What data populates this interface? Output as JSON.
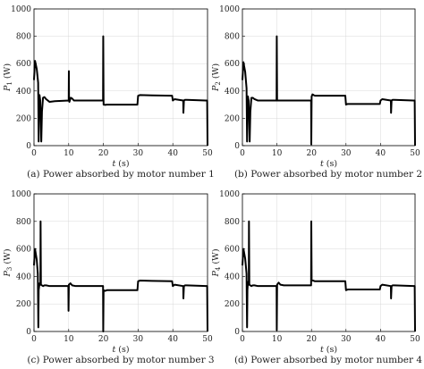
{
  "chart_data": [
    {
      "type": "line",
      "caption": "(a) Power absorbed by motor number 1",
      "ylabel_main": "P",
      "ylabel_sub": "1",
      "ylabel_unit": "(W)",
      "xlabel_main": "t",
      "xlabel_unit": "(s)",
      "xlim": [
        0,
        50
      ],
      "ylim": [
        0,
        1000
      ],
      "xticks": [
        "0",
        "10",
        "20",
        "30",
        "40",
        "50"
      ],
      "yticks": [
        "0",
        "200",
        "400",
        "600",
        "800",
        "1000"
      ],
      "grid": true,
      "x": [
        0,
        0.3,
        0.8,
        1.2,
        1.35,
        1.45,
        1.6,
        1.8,
        2.1,
        2.3,
        2.6,
        3,
        3.5,
        4.5,
        6,
        8,
        10,
        10.05,
        10.1,
        10.2,
        10.6,
        11,
        11.5,
        12.5,
        15,
        19.9,
        19.95,
        20.05,
        20.1,
        20.5,
        21,
        25,
        29.8,
        30,
        30.5,
        34,
        39.8,
        40,
        40.5,
        43,
        43.05,
        43.2,
        43.5,
        44,
        49.5,
        49.9,
        50
      ],
      "y": [
        480,
        620,
        560,
        460,
        30,
        290,
        370,
        330,
        30,
        250,
        350,
        355,
        340,
        320,
        325,
        328,
        330,
        545,
        330,
        320,
        350,
        345,
        330,
        330,
        330,
        330,
        800,
        300,
        300,
        298,
        300,
        300,
        300,
        365,
        370,
        368,
        365,
        330,
        340,
        330,
        240,
        330,
        335,
        335,
        330,
        330,
        0
      ]
    },
    {
      "type": "line",
      "caption": "(b) Power absorbed by motor number 2",
      "ylabel_main": "P",
      "ylabel_sub": "2",
      "ylabel_unit": "(W)",
      "xlabel_main": "t",
      "xlabel_unit": "(s)",
      "xlim": [
        0,
        50
      ],
      "ylim": [
        0,
        1000
      ],
      "xticks": [
        "0",
        "10",
        "20",
        "30",
        "40",
        "50"
      ],
      "yticks": [
        "0",
        "200",
        "400",
        "600",
        "800",
        "1000"
      ],
      "grid": true,
      "x": [
        0,
        0.3,
        0.8,
        1.2,
        1.35,
        1.45,
        1.6,
        1.8,
        2.1,
        2.3,
        2.6,
        3,
        3.5,
        4.5,
        6,
        8,
        9.9,
        9.95,
        10.05,
        10.1,
        12,
        15,
        19.9,
        19.95,
        20.05,
        20.3,
        20.6,
        21,
        25,
        29.8,
        30,
        30.5,
        34,
        39.8,
        40,
        40.5,
        43,
        43.05,
        43.2,
        43.5,
        44,
        49.5,
        49.9,
        50
      ],
      "y": [
        480,
        610,
        540,
        420,
        30,
        300,
        360,
        330,
        30,
        250,
        350,
        350,
        340,
        330,
        330,
        330,
        330,
        800,
        330,
        330,
        330,
        330,
        330,
        10,
        360,
        375,
        370,
        365,
        365,
        365,
        300,
        305,
        305,
        305,
        330,
        340,
        330,
        240,
        330,
        335,
        335,
        330,
        330,
        0
      ]
    },
    {
      "type": "line",
      "caption": "(c) Power absorbed by motor number 3",
      "ylabel_main": "P",
      "ylabel_sub": "3",
      "ylabel_unit": "(W)",
      "xlabel_main": "t",
      "xlabel_unit": "(s)",
      "xlim": [
        0,
        50
      ],
      "ylim": [
        0,
        1000
      ],
      "xticks": [
        "0",
        "10",
        "20",
        "30",
        "40",
        "50"
      ],
      "yticks": [
        "0",
        "200",
        "400",
        "600",
        "800",
        "1000"
      ],
      "grid": true,
      "x": [
        0,
        0.3,
        0.8,
        1.1,
        1.25,
        1.35,
        1.6,
        1.85,
        1.9,
        2,
        2.3,
        2.6,
        3,
        3.5,
        4.5,
        6,
        8,
        9.9,
        9.95,
        10.05,
        10.5,
        11,
        12,
        15,
        19.9,
        19.95,
        20.05,
        20.5,
        21,
        25,
        29.8,
        30,
        30.5,
        34,
        39.8,
        40,
        40.5,
        43,
        43.05,
        43.2,
        43.5,
        44,
        49.5,
        49.9,
        50
      ],
      "y": [
        480,
        600,
        520,
        420,
        30,
        300,
        350,
        340,
        800,
        340,
        335,
        330,
        335,
        335,
        330,
        330,
        330,
        330,
        150,
        340,
        350,
        335,
        330,
        330,
        330,
        0,
        300,
        295,
        300,
        300,
        300,
        365,
        370,
        368,
        365,
        330,
        340,
        330,
        240,
        330,
        335,
        335,
        330,
        330,
        0
      ]
    },
    {
      "type": "line",
      "caption": "(d) Power absorbed by motor number 4",
      "ylabel_main": "P",
      "ylabel_sub": "4",
      "ylabel_unit": "(W)",
      "xlabel_main": "t",
      "xlabel_unit": "(s)",
      "xlim": [
        0,
        50
      ],
      "ylim": [
        0,
        1000
      ],
      "xticks": [
        "0",
        "10",
        "20",
        "30",
        "40",
        "50"
      ],
      "yticks": [
        "0",
        "200",
        "400",
        "600",
        "800",
        "1000"
      ],
      "grid": true,
      "x": [
        0,
        0.3,
        0.8,
        1.2,
        1.35,
        1.45,
        1.6,
        1.85,
        1.9,
        2,
        2.3,
        2.6,
        3,
        3.5,
        4.5,
        6,
        8,
        9.9,
        9.95,
        10.05,
        10.5,
        11,
        12,
        15,
        19.9,
        19.95,
        20.05,
        20.5,
        21,
        25,
        29.8,
        30,
        30.5,
        34,
        39.8,
        40,
        40.5,
        43,
        43.05,
        43.2,
        43.5,
        44,
        49.5,
        49.9,
        50
      ],
      "y": [
        480,
        600,
        530,
        420,
        30,
        300,
        360,
        340,
        800,
        340,
        335,
        330,
        335,
        335,
        330,
        330,
        330,
        330,
        10,
        340,
        355,
        340,
        335,
        335,
        335,
        800,
        370,
        370,
        365,
        365,
        365,
        300,
        305,
        305,
        305,
        330,
        340,
        330,
        240,
        330,
        335,
        335,
        330,
        330,
        0
      ]
    }
  ]
}
